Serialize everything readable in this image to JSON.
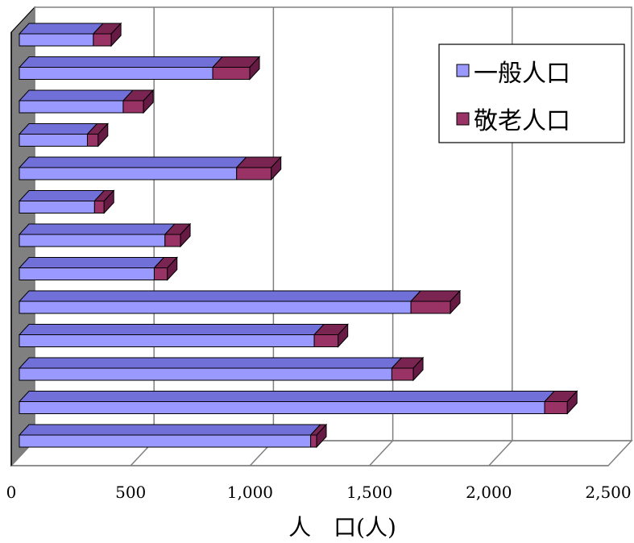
{
  "chart_data": {
    "type": "bar",
    "orientation": "horizontal",
    "stacked": true,
    "three_d": true,
    "title": "",
    "xlabel": "人　口(人)",
    "ylabel": "",
    "xlim": [
      0,
      2500
    ],
    "x_ticks": [
      0,
      500,
      1000,
      1500,
      2000,
      2500
    ],
    "x_tick_labels": [
      "0",
      "500",
      "1,000",
      "1,500",
      "2,000",
      "2,500"
    ],
    "grid": true,
    "legend_position": "top-right",
    "series": [
      {
        "name": "一般人口",
        "color": "#9999ff",
        "top_color": "#7070d8",
        "side_color": "#6666cc",
        "values": [
          310,
          810,
          435,
          285,
          910,
          315,
          610,
          565,
          1640,
          1235,
          1560,
          2200,
          1220
        ]
      },
      {
        "name": "敬老人口",
        "color": "#993366",
        "top_color": "#7a2452",
        "side_color": "#661a44",
        "values": [
          75,
          155,
          85,
          45,
          145,
          40,
          65,
          55,
          165,
          100,
          90,
          95,
          25
        ]
      }
    ]
  }
}
